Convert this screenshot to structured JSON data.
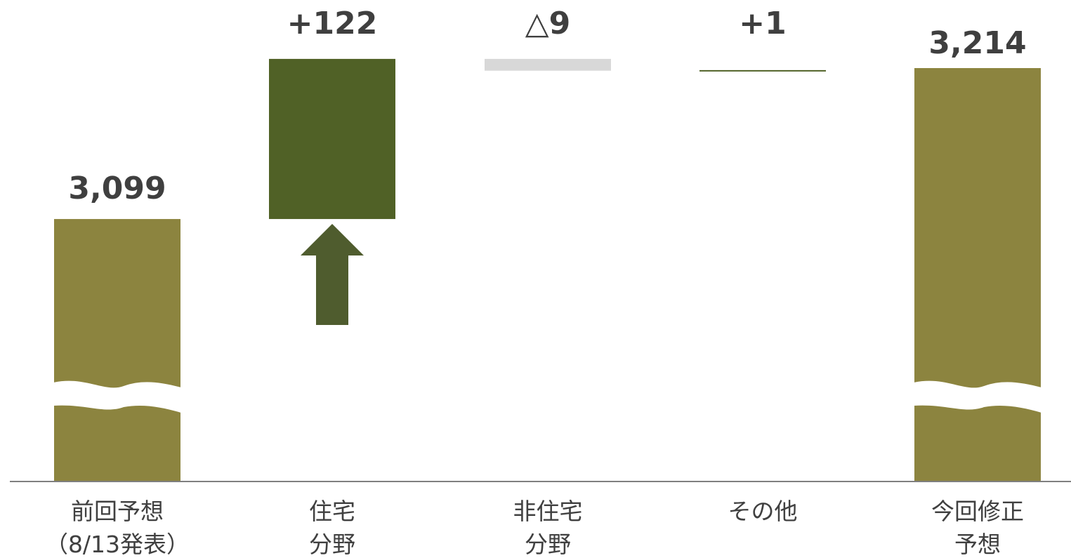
{
  "chart_data": {
    "type": "waterfall",
    "categories": [
      [
        "前回予想",
        "（8/13発表）"
      ],
      [
        "住宅",
        "分野"
      ],
      [
        "非住宅",
        "分野"
      ],
      [
        "その他"
      ],
      [
        "今回修正",
        "予想"
      ]
    ],
    "values": [
      3099,
      122,
      -9,
      1,
      3214
    ],
    "value_labels": [
      "3,099",
      "+122",
      "△9",
      "+1",
      "3,214"
    ],
    "bar_kinds": [
      "total",
      "increase",
      "decrease",
      "increase",
      "total"
    ],
    "axis_break": true,
    "grid": false,
    "legend": "none",
    "colors": {
      "total": "#8c843f",
      "increase": "#506126",
      "decrease": "#d8d8d8",
      "arrow": "#4f5c2e",
      "axis": "#7f7f7f",
      "text": "#404040"
    }
  }
}
